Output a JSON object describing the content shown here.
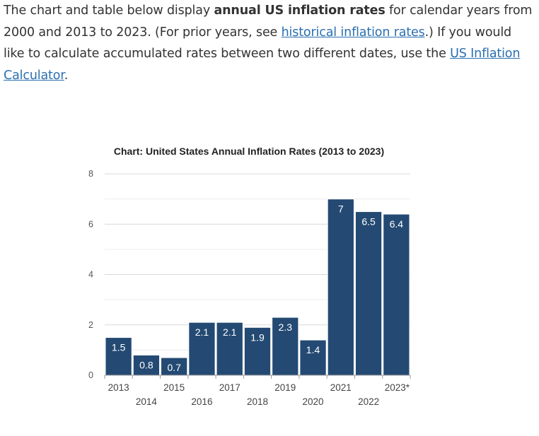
{
  "intro": {
    "part1": "The chart and table below display ",
    "bold": "annual US inflation rates",
    "part2": " for calendar years from 2000 and 2013 to 2023. (For prior years, see ",
    "link1": "historical inflation rates",
    "part3": ".) If you would like to calculate accumulated rates between two different dates, use the ",
    "link2": "US Inflation Calculator",
    "part4": "."
  },
  "colors": {
    "bar": "#244a73",
    "bar_edge": "#ffffff",
    "grid": "#d8d8d8",
    "axis": "#999999",
    "text": "#333333",
    "link": "#2a6fb0"
  },
  "chart_data": {
    "type": "bar",
    "title": "Chart: United States Annual Inflation Rates (2013 to 2023)",
    "categories": [
      "2013",
      "2014",
      "2015",
      "2016",
      "2017",
      "2018",
      "2019",
      "2020",
      "2021",
      "2022",
      "2023*"
    ],
    "values": [
      1.5,
      0.8,
      0.7,
      2.1,
      2.1,
      1.9,
      2.3,
      1.4,
      7,
      6.5,
      6.4
    ],
    "data_labels": [
      "1.5",
      "0.8",
      "0.7",
      "2.1",
      "2.1",
      "1.9",
      "2.3",
      "1.4",
      "7",
      "6.5",
      "6.4"
    ],
    "yticks": [
      "0",
      "2",
      "4",
      "6",
      "8"
    ],
    "ytick_values": [
      0,
      2,
      4,
      6,
      8
    ],
    "ylim": [
      0,
      8
    ],
    "xlabel": "",
    "ylabel": "",
    "grid": true,
    "legend": "none"
  }
}
